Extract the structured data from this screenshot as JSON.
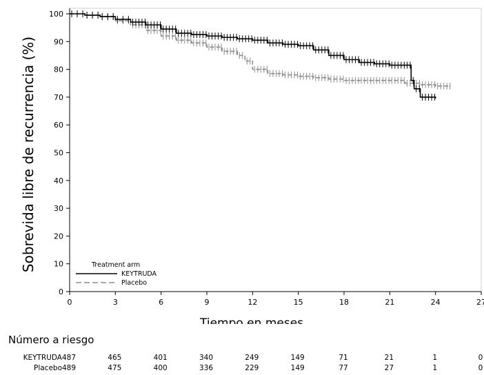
{
  "chart_data": {
    "type": "line",
    "title": "",
    "xlabel": "Tiempo en meses",
    "ylabel": "Sobrevida libre de recurrencia (%)",
    "xlim": [
      0,
      27
    ],
    "ylim": [
      0,
      100
    ],
    "xticks": [
      0,
      3,
      6,
      9,
      12,
      15,
      18,
      21,
      24,
      27
    ],
    "yticks": [
      0,
      10,
      20,
      30,
      40,
      50,
      60,
      70,
      80,
      90,
      100
    ],
    "grid": false,
    "legend": {
      "title": "Treatment arm",
      "placement": "bottom-left",
      "entries": [
        "KEYTRUDA",
        "Placebo"
      ]
    },
    "series": [
      {
        "name": "KEYTRUDA",
        "color": "#000000",
        "dash": "solid",
        "x": [
          0,
          1,
          2,
          3,
          4,
          5,
          6,
          7,
          8,
          9,
          10,
          11,
          12,
          13,
          14,
          15,
          16,
          17,
          18,
          19,
          20,
          21,
          22,
          22.4,
          22.6,
          23,
          24
        ],
        "y": [
          100,
          99.5,
          99,
          98,
          97,
          96,
          94.5,
          93,
          92.5,
          92,
          91.5,
          91,
          90.5,
          89.5,
          89,
          88.5,
          87,
          85,
          83.5,
          82.5,
          82,
          81.5,
          81.5,
          76,
          73,
          70,
          69.5
        ]
      },
      {
        "name": "Placebo",
        "color": "#8c8c8c",
        "dash": "dashed",
        "x": [
          0,
          1,
          2,
          3,
          4,
          5,
          6,
          7,
          8,
          9,
          10,
          11,
          11.5,
          12,
          13,
          14,
          15,
          16,
          17,
          18,
          19,
          20,
          21,
          22,
          23,
          24,
          25
        ],
        "y": [
          100,
          99.5,
          99,
          97.5,
          96,
          94,
          92,
          90.5,
          89.5,
          88,
          86.5,
          85,
          83,
          80,
          78.5,
          78,
          77.5,
          77,
          76.5,
          76,
          76,
          76,
          76,
          75,
          74.5,
          74,
          74
        ]
      }
    ]
  },
  "risk_table": {
    "title": "Número a riesgo",
    "times": [
      0,
      3,
      6,
      9,
      12,
      15,
      18,
      21,
      24,
      27
    ],
    "rows": [
      {
        "name": "KEYTRUDA",
        "values": [
          "487",
          "465",
          "401",
          "340",
          "249",
          "149",
          "71",
          "21",
          "1",
          "0"
        ]
      },
      {
        "name": "Placebo",
        "values": [
          "489",
          "475",
          "400",
          "336",
          "229",
          "149",
          "77",
          "27",
          "1",
          "0"
        ]
      }
    ]
  }
}
